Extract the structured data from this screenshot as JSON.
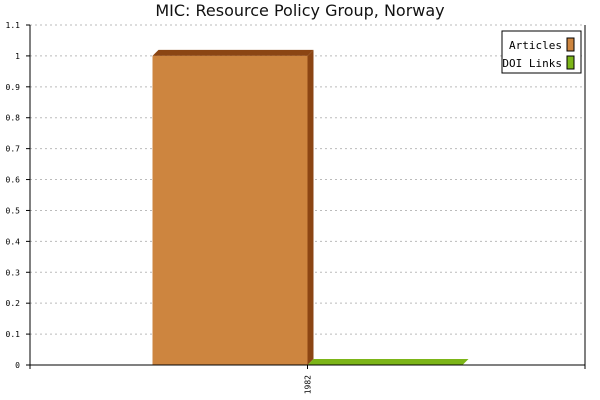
{
  "chart_data": {
    "type": "bar",
    "title": "MIC: Resource Policy Group, Norway",
    "xlabel": "",
    "ylabel": "",
    "categories": [
      "1982"
    ],
    "series": [
      {
        "name": "Articles",
        "values": [
          1
        ],
        "color": "#cd853f",
        "shade": "#8b4513"
      },
      {
        "name": "DOI Links",
        "values": [
          0
        ],
        "color": "#7cb518",
        "shade": "#5a8a10"
      }
    ],
    "ylim": [
      0,
      1.1
    ],
    "yticks": [
      "0",
      "0.1",
      "0.2",
      "0.3",
      "0.4",
      "0.5",
      "0.6",
      "0.7",
      "0.8",
      "0.9",
      "1",
      "1.1"
    ],
    "grid": true,
    "legend_position": "top-right"
  }
}
